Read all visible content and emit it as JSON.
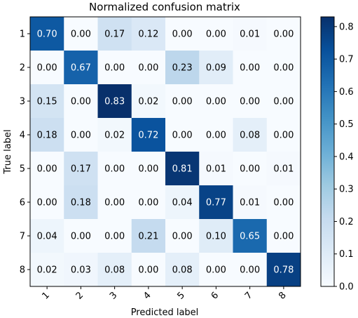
{
  "chart_data": {
    "type": "heatmap",
    "title": "Normalized confusion matrix",
    "xlabel": "Predicted label",
    "ylabel": "True label",
    "x_tick_labels": [
      "1",
      "2",
      "3",
      "4",
      "5",
      "6",
      "7",
      "8"
    ],
    "y_tick_labels": [
      "1",
      "2",
      "3",
      "4",
      "5",
      "6",
      "7",
      "8"
    ],
    "colormap": "Blues",
    "color_range": [
      0.0,
      0.83
    ],
    "colorbar_ticks": [
      "0.0",
      "0.1",
      "0.2",
      "0.3",
      "0.4",
      "0.5",
      "0.6",
      "0.7",
      "0.8"
    ],
    "colorbar_tick_values": [
      0.0,
      0.1,
      0.2,
      0.3,
      0.4,
      0.5,
      0.6,
      0.7,
      0.8
    ],
    "text_threshold": 0.415,
    "cells": [
      [
        "0.70",
        "0.00",
        "0.17",
        "0.12",
        "0.00",
        "0.00",
        "0.01",
        "0.00"
      ],
      [
        "0.00",
        "0.67",
        "0.00",
        "0.00",
        "0.23",
        "0.09",
        "0.00",
        "0.00"
      ],
      [
        "0.15",
        "0.00",
        "0.83",
        "0.02",
        "0.00",
        "0.00",
        "0.00",
        "0.00"
      ],
      [
        "0.18",
        "0.00",
        "0.02",
        "0.72",
        "0.00",
        "0.00",
        "0.08",
        "0.00"
      ],
      [
        "0.00",
        "0.17",
        "0.00",
        "0.00",
        "0.81",
        "0.01",
        "0.00",
        "0.01"
      ],
      [
        "0.00",
        "0.18",
        "0.00",
        "0.00",
        "0.04",
        "0.77",
        "0.01",
        "0.00"
      ],
      [
        "0.04",
        "0.00",
        "0.00",
        "0.21",
        "0.00",
        "0.10",
        "0.65",
        "0.00"
      ],
      [
        "0.02",
        "0.03",
        "0.08",
        "0.00",
        "0.08",
        "0.00",
        "0.00",
        "0.78"
      ]
    ]
  }
}
